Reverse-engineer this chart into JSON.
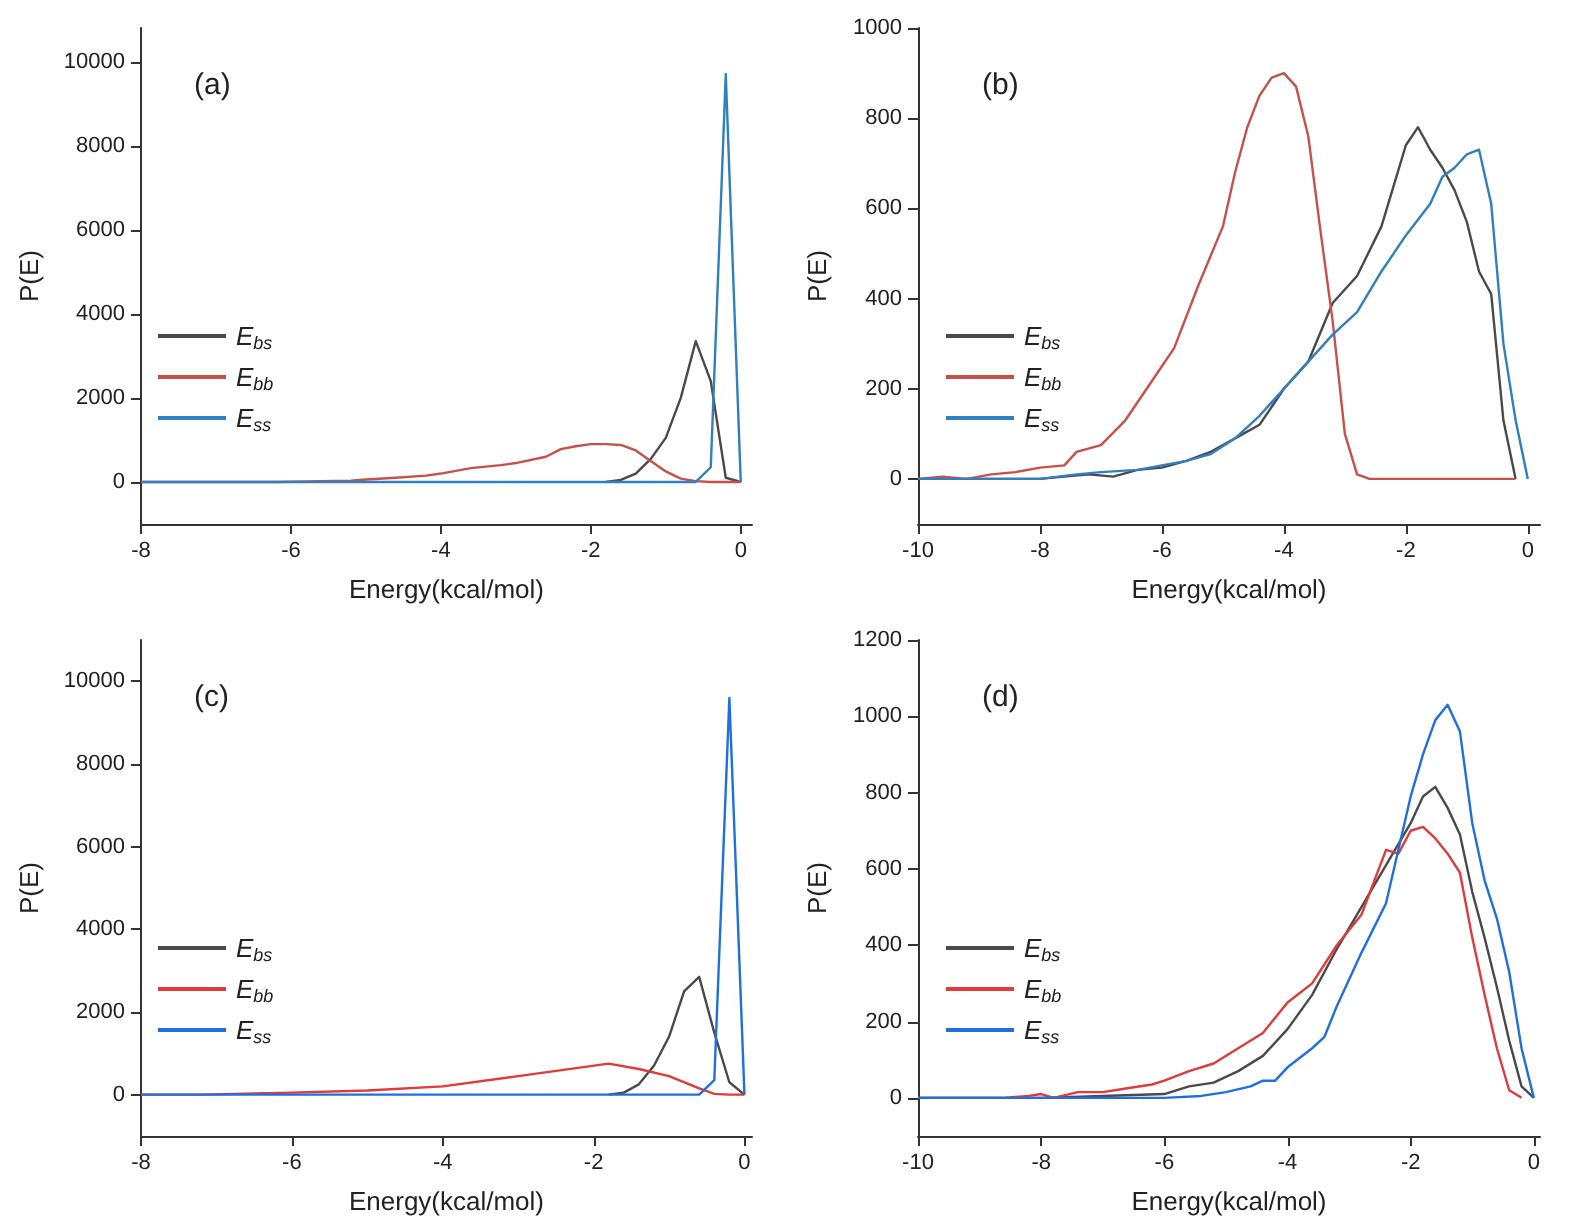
{
  "chart_data": [
    {
      "type": "line",
      "title": "(a)",
      "xlabel": "Energy(kcal/mol)",
      "ylabel": "P(E)",
      "xlim": [
        -8,
        0.15
      ],
      "xticks": [
        -8,
        -6,
        -4,
        -2,
        0
      ],
      "ylim": [
        -1000,
        10800
      ],
      "yticks": [
        0,
        2000,
        4000,
        6000,
        8000,
        10000
      ],
      "grid": false,
      "legend": "bottom left",
      "marker": "none",
      "line_style": "solid",
      "series": [
        {
          "name": "E$_{bs}$",
          "color": "#4a4a4a",
          "x": [
            -1.8,
            -1.6,
            -1.4,
            -1.2,
            -1.0,
            -0.8,
            -0.6,
            -0.4,
            -0.2,
            0
          ],
          "values": [
            0,
            50,
            200,
            550,
            1050,
            2000,
            3350,
            2400,
            100,
            0
          ]
        },
        {
          "name": "E$_{bb}$",
          "color": "#c8504a",
          "x": [
            -8,
            -6.2,
            -5.2,
            -5,
            -4.6,
            -4.2,
            -4,
            -3.6,
            -3.2,
            -3,
            -2.6,
            -2.4,
            -2.2,
            -2,
            -1.8,
            -1.6,
            -1.4,
            -1.2,
            -1,
            -0.8,
            -0.6,
            -0.4,
            0
          ],
          "values": [
            0,
            0,
            30,
            60,
            100,
            150,
            200,
            330,
            400,
            450,
            600,
            780,
            850,
            900,
            900,
            880,
            750,
            500,
            250,
            80,
            20,
            0,
            0
          ]
        },
        {
          "name": "E$_{ss}$",
          "color": "#2f7fc1",
          "x": [
            -8,
            -0.6,
            -0.4,
            -0.2,
            0
          ],
          "values": [
            0,
            0,
            350,
            9700,
            0
          ]
        }
      ]
    },
    {
      "type": "line",
      "title": "(b)",
      "xlabel": "Energy(kcal/mol)",
      "ylabel": "P(E)",
      "xlim": [
        -10,
        0.2
      ],
      "xticks": [
        -10,
        -8,
        -6,
        -4,
        -2,
        0
      ],
      "ylim": [
        -100,
        1000
      ],
      "yticks": [
        0,
        200,
        400,
        600,
        800,
        1000
      ],
      "grid": false,
      "legend": "bottom left",
      "marker": "none",
      "line_style": "solid",
      "series": [
        {
          "name": "E$_{bs}$",
          "color": "#4a4a4a",
          "x": [
            -10,
            -8,
            -7.6,
            -7.2,
            -6.8,
            -6.4,
            -6,
            -5.6,
            -5.2,
            -4.8,
            -4.4,
            -4,
            -3.6,
            -3.2,
            -2.8,
            -2.4,
            -2.2,
            -2,
            -1.8,
            -1.6,
            -1.4,
            -1.2,
            -1,
            -0.8,
            -0.6,
            -0.4,
            -0.2
          ],
          "values": [
            0,
            0,
            5,
            10,
            5,
            20,
            25,
            40,
            60,
            90,
            120,
            200,
            260,
            390,
            450,
            560,
            650,
            740,
            780,
            730,
            690,
            640,
            570,
            460,
            410,
            130,
            0
          ]
        },
        {
          "name": "E$_{bb}$",
          "color": "#c8504a",
          "x": [
            -10,
            -9.6,
            -9.2,
            -8.8,
            -8.4,
            -8,
            -7.6,
            -7.4,
            -7,
            -6.6,
            -6.2,
            -5.8,
            -5.4,
            -5,
            -4.8,
            -4.6,
            -4.4,
            -4.2,
            -4,
            -3.8,
            -3.6,
            -3.4,
            -3.2,
            -3,
            -2.8,
            -2.6,
            -0.2
          ],
          "values": [
            0,
            5,
            0,
            10,
            15,
            25,
            30,
            60,
            75,
            130,
            210,
            290,
            430,
            560,
            680,
            780,
            850,
            890,
            900,
            870,
            760,
            550,
            350,
            100,
            10,
            0,
            0
          ]
        },
        {
          "name": "E$_{ss}$",
          "color": "#2f7fc1",
          "x": [
            -10,
            -8,
            -7.4,
            -7,
            -6.4,
            -6,
            -5.6,
            -5.2,
            -4.8,
            -4.4,
            -4,
            -3.6,
            -3.2,
            -2.8,
            -2.4,
            -2,
            -1.6,
            -1.4,
            -1.2,
            -1,
            -0.8,
            -0.6,
            -0.4,
            -0.2,
            0
          ],
          "values": [
            0,
            0,
            10,
            15,
            20,
            30,
            40,
            55,
            90,
            140,
            200,
            260,
            320,
            370,
            460,
            540,
            610,
            670,
            690,
            720,
            730,
            610,
            300,
            130,
            0
          ]
        }
      ]
    },
    {
      "type": "line",
      "title": "(c)",
      "xlabel": "Energy(kcal/mol)",
      "ylabel": "P(E)",
      "xlim": [
        -8,
        0.1
      ],
      "xticks": [
        -8,
        -6,
        -4,
        -2,
        0
      ],
      "ylim": [
        -1000,
        11000
      ],
      "yticks": [
        0,
        2000,
        4000,
        6000,
        8000,
        10000
      ],
      "grid": false,
      "legend": "bottom left",
      "marker": "none",
      "line_style": "solid",
      "series": [
        {
          "name": "E$_{bs}$",
          "color": "#4a4a4a",
          "x": [
            -1.8,
            -1.6,
            -1.4,
            -1.2,
            -1.0,
            -0.8,
            -0.6,
            -0.4,
            -0.2,
            0
          ],
          "values": [
            0,
            50,
            250,
            700,
            1400,
            2500,
            2850,
            1500,
            300,
            0
          ]
        },
        {
          "name": "E$_{bb}$",
          "color": "#e03a3a",
          "x": [
            -8,
            -7.2,
            -6,
            -5,
            -4,
            -3,
            -2.4,
            -1.8,
            -1.4,
            -1,
            -0.6,
            -0.4,
            -0.2,
            0
          ],
          "values": [
            0,
            0,
            50,
            100,
            200,
            450,
            600,
            750,
            620,
            450,
            150,
            20,
            0,
            0
          ]
        },
        {
          "name": "E$_{ss}$",
          "color": "#1f6fe0",
          "x": [
            -8,
            -0.6,
            -0.4,
            -0.2,
            0
          ],
          "values": [
            0,
            0,
            350,
            9600,
            0
          ]
        }
      ]
    },
    {
      "type": "line",
      "title": "(d)",
      "xlabel": "Energy(kcal/mol)",
      "ylabel": "P(E)",
      "xlim": [
        -10,
        0.1
      ],
      "xticks": [
        -10,
        -8,
        -6,
        -4,
        -2,
        0
      ],
      "ylim": [
        -100,
        1200
      ],
      "yticks": [
        0,
        200,
        400,
        600,
        800,
        1000,
        1200
      ],
      "grid": false,
      "legend": "bottom left",
      "marker": "none",
      "line_style": "solid",
      "series": [
        {
          "name": "E$_{bs}$",
          "color": "#4a4a4a",
          "x": [
            -10,
            -8,
            -7,
            -6,
            -5.6,
            -5.2,
            -4.8,
            -4.4,
            -4,
            -3.6,
            -3.2,
            -2.8,
            -2.4,
            -2,
            -1.8,
            -1.6,
            -1.4,
            -1.2,
            -1,
            -0.8,
            -0.6,
            -0.4,
            -0.2,
            0
          ],
          "values": [
            0,
            0,
            5,
            10,
            30,
            40,
            70,
            110,
            180,
            270,
            390,
            500,
            610,
            720,
            790,
            815,
            760,
            690,
            540,
            420,
            290,
            150,
            30,
            0
          ]
        },
        {
          "name": "E$_{bb}$",
          "color": "#e03a3a",
          "x": [
            -10,
            -8.6,
            -8.2,
            -8,
            -7.8,
            -7.4,
            -7,
            -6.6,
            -6.2,
            -6,
            -5.6,
            -5.2,
            -4.8,
            -4.4,
            -4,
            -3.6,
            -3.2,
            -2.8,
            -2.4,
            -2.2,
            -2,
            -1.8,
            -1.6,
            -1.4,
            -1.2,
            -1,
            -0.8,
            -0.6,
            -0.4,
            -0.2
          ],
          "values": [
            0,
            0,
            5,
            10,
            0,
            15,
            15,
            25,
            35,
            45,
            70,
            90,
            130,
            170,
            250,
            300,
            400,
            480,
            650,
            640,
            700,
            710,
            680,
            640,
            590,
            420,
            270,
            130,
            20,
            0
          ]
        },
        {
          "name": "E$_{ss}$",
          "color": "#1f6fe0",
          "x": [
            -10,
            -6,
            -5.4,
            -5,
            -4.6,
            -4.4,
            -4.2,
            -4,
            -3.6,
            -3.4,
            -3.2,
            -2.8,
            -2.4,
            -2.2,
            -2,
            -1.8,
            -1.6,
            -1.4,
            -1.2,
            -1,
            -0.8,
            -0.6,
            -0.4,
            -0.2,
            0
          ],
          "values": [
            0,
            0,
            5,
            15,
            30,
            45,
            45,
            80,
            130,
            160,
            240,
            380,
            510,
            650,
            790,
            900,
            990,
            1030,
            960,
            720,
            570,
            470,
            330,
            130,
            0
          ]
        }
      ]
    }
  ]
}
